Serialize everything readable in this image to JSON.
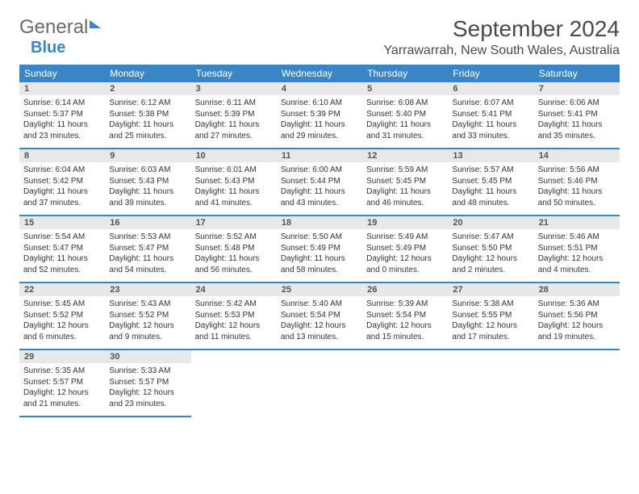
{
  "brand": {
    "part1": "General",
    "part2": "Blue"
  },
  "title": "September 2024",
  "location": "Yarrawarrah, New South Wales, Australia",
  "weekdays": [
    "Sunday",
    "Monday",
    "Tuesday",
    "Wednesday",
    "Thursday",
    "Friday",
    "Saturday"
  ],
  "colors": {
    "accent": "#3a85c5",
    "header_bg": "#3a85c5",
    "daynum_bg": "#e8e8e8",
    "text": "#333333",
    "title_text": "#4a4a4a"
  },
  "fonts": {
    "title_size": 28,
    "location_size": 16,
    "weekday_size": 12,
    "daynum_size": 11,
    "body_size": 10
  },
  "layout": {
    "columns": 7,
    "rows": 5,
    "cell_min_height": 64
  },
  "days": [
    {
      "n": "1",
      "sunrise": "6:14 AM",
      "sunset": "5:37 PM",
      "dl": "11 hours and 23 minutes."
    },
    {
      "n": "2",
      "sunrise": "6:12 AM",
      "sunset": "5:38 PM",
      "dl": "11 hours and 25 minutes."
    },
    {
      "n": "3",
      "sunrise": "6:11 AM",
      "sunset": "5:39 PM",
      "dl": "11 hours and 27 minutes."
    },
    {
      "n": "4",
      "sunrise": "6:10 AM",
      "sunset": "5:39 PM",
      "dl": "11 hours and 29 minutes."
    },
    {
      "n": "5",
      "sunrise": "6:08 AM",
      "sunset": "5:40 PM",
      "dl": "11 hours and 31 minutes."
    },
    {
      "n": "6",
      "sunrise": "6:07 AM",
      "sunset": "5:41 PM",
      "dl": "11 hours and 33 minutes."
    },
    {
      "n": "7",
      "sunrise": "6:06 AM",
      "sunset": "5:41 PM",
      "dl": "11 hours and 35 minutes."
    },
    {
      "n": "8",
      "sunrise": "6:04 AM",
      "sunset": "5:42 PM",
      "dl": "11 hours and 37 minutes."
    },
    {
      "n": "9",
      "sunrise": "6:03 AM",
      "sunset": "5:43 PM",
      "dl": "11 hours and 39 minutes."
    },
    {
      "n": "10",
      "sunrise": "6:01 AM",
      "sunset": "5:43 PM",
      "dl": "11 hours and 41 minutes."
    },
    {
      "n": "11",
      "sunrise": "6:00 AM",
      "sunset": "5:44 PM",
      "dl": "11 hours and 43 minutes."
    },
    {
      "n": "12",
      "sunrise": "5:59 AM",
      "sunset": "5:45 PM",
      "dl": "11 hours and 46 minutes."
    },
    {
      "n": "13",
      "sunrise": "5:57 AM",
      "sunset": "5:45 PM",
      "dl": "11 hours and 48 minutes."
    },
    {
      "n": "14",
      "sunrise": "5:56 AM",
      "sunset": "5:46 PM",
      "dl": "11 hours and 50 minutes."
    },
    {
      "n": "15",
      "sunrise": "5:54 AM",
      "sunset": "5:47 PM",
      "dl": "11 hours and 52 minutes."
    },
    {
      "n": "16",
      "sunrise": "5:53 AM",
      "sunset": "5:47 PM",
      "dl": "11 hours and 54 minutes."
    },
    {
      "n": "17",
      "sunrise": "5:52 AM",
      "sunset": "5:48 PM",
      "dl": "11 hours and 56 minutes."
    },
    {
      "n": "18",
      "sunrise": "5:50 AM",
      "sunset": "5:49 PM",
      "dl": "11 hours and 58 minutes."
    },
    {
      "n": "19",
      "sunrise": "5:49 AM",
      "sunset": "5:49 PM",
      "dl": "12 hours and 0 minutes."
    },
    {
      "n": "20",
      "sunrise": "5:47 AM",
      "sunset": "5:50 PM",
      "dl": "12 hours and 2 minutes."
    },
    {
      "n": "21",
      "sunrise": "5:46 AM",
      "sunset": "5:51 PM",
      "dl": "12 hours and 4 minutes."
    },
    {
      "n": "22",
      "sunrise": "5:45 AM",
      "sunset": "5:52 PM",
      "dl": "12 hours and 6 minutes."
    },
    {
      "n": "23",
      "sunrise": "5:43 AM",
      "sunset": "5:52 PM",
      "dl": "12 hours and 9 minutes."
    },
    {
      "n": "24",
      "sunrise": "5:42 AM",
      "sunset": "5:53 PM",
      "dl": "12 hours and 11 minutes."
    },
    {
      "n": "25",
      "sunrise": "5:40 AM",
      "sunset": "5:54 PM",
      "dl": "12 hours and 13 minutes."
    },
    {
      "n": "26",
      "sunrise": "5:39 AM",
      "sunset": "5:54 PM",
      "dl": "12 hours and 15 minutes."
    },
    {
      "n": "27",
      "sunrise": "5:38 AM",
      "sunset": "5:55 PM",
      "dl": "12 hours and 17 minutes."
    },
    {
      "n": "28",
      "sunrise": "5:36 AM",
      "sunset": "5:56 PM",
      "dl": "12 hours and 19 minutes."
    },
    {
      "n": "29",
      "sunrise": "5:35 AM",
      "sunset": "5:57 PM",
      "dl": "12 hours and 21 minutes."
    },
    {
      "n": "30",
      "sunrise": "5:33 AM",
      "sunset": "5:57 PM",
      "dl": "12 hours and 23 minutes."
    }
  ],
  "labels": {
    "sunrise": "Sunrise:",
    "sunset": "Sunset:",
    "daylight": "Daylight:"
  }
}
